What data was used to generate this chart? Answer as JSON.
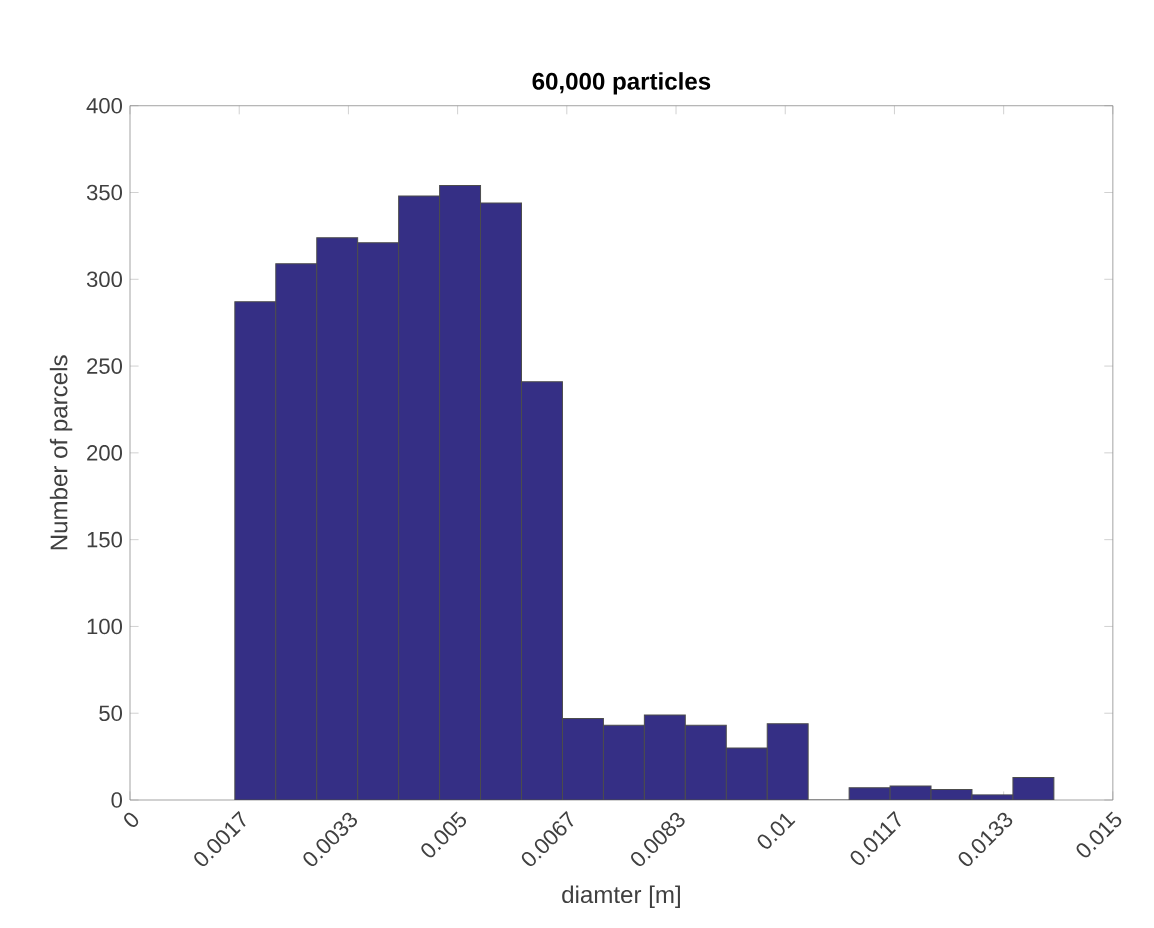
{
  "chart_data": {
    "type": "histogram",
    "title": "60,000 particles",
    "xlabel": "diamter [m]",
    "ylabel": "Number of parcels",
    "bins": [
      0.0016,
      0.002225,
      0.00285,
      0.003475,
      0.0041,
      0.004725,
      0.00535,
      0.005975,
      0.0066,
      0.007225,
      0.00785,
      0.008475,
      0.0091,
      0.009725,
      0.01035,
      0.010975,
      0.0116,
      0.012225,
      0.01285,
      0.013475,
      0.0141
    ],
    "values": [
      287,
      309,
      324,
      321,
      348,
      354,
      344,
      241,
      47,
      43,
      49,
      43,
      30,
      44,
      0,
      7,
      8,
      6,
      3,
      13
    ],
    "color": "#352f85",
    "xlim": [
      0,
      0.015
    ],
    "ylim": [
      0,
      400
    ],
    "xticks": [
      0,
      {
        "value": 0.0016667,
        "label": "0.0017"
      },
      {
        "value": 0.0033333,
        "label": "0.0033"
      },
      0.005,
      {
        "value": 0.0066667,
        "label": "0.0067"
      },
      {
        "value": 0.0083333,
        "label": "0.0083"
      },
      0.01,
      {
        "value": 0.0116667,
        "label": "0.0117"
      },
      {
        "value": 0.0133333,
        "label": "0.0133"
      },
      0.015
    ],
    "yticks": [
      0,
      50,
      100,
      150,
      200,
      250,
      300,
      350,
      400
    ]
  }
}
